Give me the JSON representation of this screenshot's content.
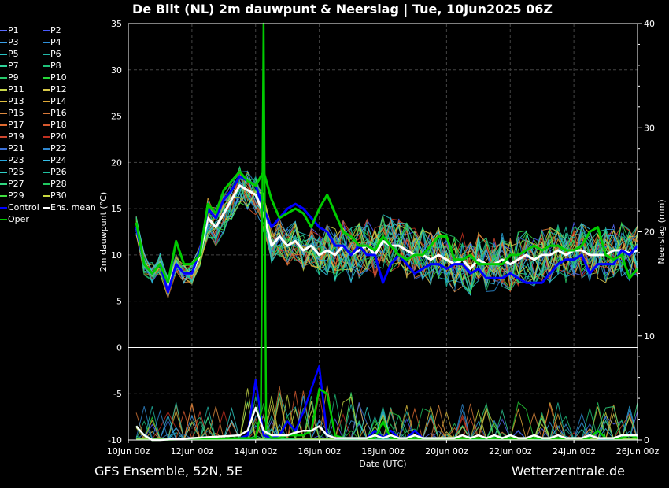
{
  "header": {
    "title": "De Bilt  (NL)  2m dauwpunt & Neerslag | Tue, 10Jun2025 06Z"
  },
  "footer": {
    "left": "GFS Ensemble, 52N, 5E",
    "right": "Wetterzentrale.de"
  },
  "legend": [
    {
      "label": "P1",
      "color": "#5b6cff"
    },
    {
      "label": "P2",
      "color": "#4a5cff"
    },
    {
      "label": "P3",
      "color": "#3aa0e8"
    },
    {
      "label": "P4",
      "color": "#2f8fd8"
    },
    {
      "label": "P5",
      "color": "#27c4c4"
    },
    {
      "label": "P6",
      "color": "#22b8a8"
    },
    {
      "label": "P7",
      "color": "#2fd49a"
    },
    {
      "label": "P8",
      "color": "#1fc27a"
    },
    {
      "label": "P9",
      "color": "#26c96a"
    },
    {
      "label": "P10",
      "color": "#27d83a"
    },
    {
      "label": "P11",
      "color": "#c8d84a"
    },
    {
      "label": "P12",
      "color": "#d8c84a"
    },
    {
      "label": "P13",
      "color": "#e0c040"
    },
    {
      "label": "P14",
      "color": "#e0a838"
    },
    {
      "label": "P15",
      "color": "#e08c40"
    },
    {
      "label": "P16",
      "color": "#d87838"
    },
    {
      "label": "P17",
      "color": "#e06a30"
    },
    {
      "label": "P18",
      "color": "#d85a30"
    },
    {
      "label": "P19",
      "color": "#d04830"
    },
    {
      "label": "P20",
      "color": "#c03020"
    },
    {
      "label": "P21",
      "color": "#3a70d8"
    },
    {
      "label": "P22",
      "color": "#3088d0"
    },
    {
      "label": "P23",
      "color": "#28a8e0"
    },
    {
      "label": "P24",
      "color": "#38c0e8"
    },
    {
      "label": "P25",
      "color": "#30d0c8"
    },
    {
      "label": "P26",
      "color": "#20c0a0"
    },
    {
      "label": "P27",
      "color": "#30d880"
    },
    {
      "label": "P28",
      "color": "#20c860"
    },
    {
      "label": "P29",
      "color": "#40e040"
    },
    {
      "label": "P30",
      "color": "#c8d840"
    },
    {
      "label": "Control",
      "color": "#0000ff"
    },
    {
      "label": "Ens. mean",
      "color": "#ffffff"
    },
    {
      "label": "Oper",
      "color": "#00cc00"
    }
  ],
  "chart_data": {
    "type": "line",
    "xlabel": "Date (UTC)",
    "ylabel": "2m dauwpunt (°C)",
    "ylabel_right": "Neerslag (mm)",
    "x_ticks": [
      "10Jun 00z",
      "12Jun 00z",
      "14Jun 00z",
      "16Jun 00z",
      "18Jun 00z",
      "20Jun 00z",
      "22Jun 00z",
      "24Jun 00z",
      "26Jun 00z"
    ],
    "xlim_hours": [
      0,
      384
    ],
    "ylim": [
      -10,
      35
    ],
    "y_ticks": [
      -10,
      -5,
      0,
      5,
      10,
      15,
      20,
      25,
      30,
      35
    ],
    "ylim_right": [
      0,
      40
    ],
    "y_ticks_right": [
      0,
      10,
      20,
      30,
      40
    ],
    "grid": true,
    "series": [
      {
        "name": "Ens. mean",
        "color": "#ffffff",
        "x": [
          6,
          12,
          18,
          24,
          30,
          36,
          42,
          48,
          54,
          60,
          66,
          72,
          78,
          84,
          90,
          96,
          102,
          108,
          114,
          120,
          126,
          132,
          138,
          144,
          150,
          156,
          162,
          168,
          174,
          180,
          186,
          192,
          198,
          204,
          210,
          216,
          222,
          228,
          234,
          240,
          246,
          252,
          258,
          264,
          270,
          276,
          282,
          288,
          294,
          300,
          306,
          312,
          318,
          324,
          330,
          336,
          342,
          348,
          354,
          360,
          366,
          372,
          378,
          384
        ],
        "y": [
          13,
          9,
          8,
          9,
          6.5,
          9,
          8,
          8,
          10,
          14,
          13,
          14.5,
          16,
          17.5,
          17,
          16.5,
          14.5,
          11,
          12,
          11,
          11.5,
          10.5,
          11,
          10,
          10.5,
          10,
          11,
          10,
          10.5,
          11,
          10,
          11.5,
          11,
          11,
          10.5,
          10,
          10,
          9.5,
          10,
          9.5,
          9,
          9.5,
          8.5,
          9.5,
          9,
          9,
          9.5,
          9,
          9.5,
          10,
          9.5,
          10,
          10,
          10.5,
          10,
          10.5,
          10.5,
          10,
          10,
          10,
          10.5,
          10.5,
          10.2,
          10.5
        ]
      },
      {
        "name": "Control",
        "color": "#0000ff",
        "x": [
          6,
          12,
          18,
          24,
          30,
          36,
          42,
          48,
          54,
          60,
          66,
          72,
          78,
          84,
          90,
          96,
          102,
          108,
          114,
          120,
          126,
          132,
          138,
          144,
          150,
          156,
          162,
          168,
          174,
          180,
          186,
          192,
          198,
          204,
          210,
          216,
          222,
          228,
          234,
          240,
          246,
          252,
          258,
          264,
          270,
          276,
          282,
          288,
          294,
          300,
          306,
          312,
          318,
          324,
          330,
          336,
          342,
          348,
          354,
          360,
          366,
          372,
          378,
          384
        ],
        "y": [
          13,
          9,
          8,
          9,
          6,
          9,
          8,
          8,
          10.5,
          15,
          14,
          16,
          17,
          18.5,
          18,
          17.5,
          15,
          13,
          14,
          15,
          15.5,
          15,
          14,
          13,
          12.5,
          11,
          11,
          10,
          11,
          10,
          10,
          7,
          9,
          10,
          9,
          8,
          8.5,
          9,
          9,
          8.5,
          9,
          9,
          8,
          8.5,
          7.5,
          7.5,
          7.5,
          8,
          7.5,
          7,
          7,
          7,
          8,
          9,
          9.5,
          9.5,
          10,
          8,
          9,
          9,
          9,
          10.5,
          10,
          11
        ]
      },
      {
        "name": "Oper",
        "color": "#00cc00",
        "x": [
          6,
          12,
          18,
          24,
          30,
          36,
          42,
          48,
          54,
          60,
          66,
          72,
          78,
          84,
          90,
          96,
          102,
          108,
          114,
          120,
          126,
          132,
          138,
          144,
          150,
          156,
          162,
          168,
          174,
          180,
          186,
          192,
          198,
          204,
          210,
          216,
          222,
          228,
          234,
          240,
          246,
          252,
          258,
          264,
          270,
          276,
          282,
          288,
          294,
          300,
          306,
          312,
          318,
          324,
          330,
          336,
          342,
          348,
          354,
          360,
          366,
          372,
          378,
          384
        ],
        "y": [
          13.5,
          9,
          8,
          9,
          7,
          11.5,
          9,
          9,
          10,
          15.5,
          14.5,
          17,
          18,
          19,
          18,
          17.5,
          19,
          16,
          14,
          14.5,
          15,
          14.5,
          13,
          15,
          16.5,
          14.5,
          12.5,
          12,
          11,
          11,
          10.5,
          12,
          11,
          10,
          9.5,
          10,
          10,
          11,
          12,
          12,
          9.5,
          9.5,
          10,
          9,
          9,
          9,
          9,
          10,
          10,
          10.5,
          11,
          10.5,
          11,
          11,
          10.5,
          10.5,
          11,
          12.5,
          13,
          10,
          9.5,
          10,
          7.5,
          8.5
        ]
      },
      {
        "name": "Control precip",
        "color": "#0000ff",
        "x": [
          84,
          90,
          96,
          102,
          108,
          114,
          120,
          126,
          132,
          138,
          144,
          150,
          156,
          162,
          168,
          174,
          180,
          186,
          192,
          198,
          204,
          210,
          216,
          222,
          228
        ],
        "y": [
          -9.8,
          -9.5,
          -3.5,
          -9.5,
          -9.8,
          -9.5,
          -8,
          -9,
          -7,
          -4.5,
          -2,
          -9.5,
          -9.8,
          -9.8,
          -9.8,
          -9.8,
          -9.8,
          -9,
          -9.8,
          -9,
          -9.8,
          -9.8,
          -9,
          -9.8,
          -9.8
        ]
      },
      {
        "name": "Oper precip",
        "color": "#00cc00",
        "x": [
          6,
          12,
          18,
          84,
          90,
          96,
          100,
          102,
          104,
          108,
          114,
          120,
          126,
          132,
          138,
          144,
          150,
          156,
          162,
          168,
          174,
          180,
          186,
          192,
          198,
          204,
          210,
          216,
          222,
          228,
          234,
          240,
          246,
          252,
          258,
          264,
          270,
          276,
          282,
          288,
          294,
          300,
          306,
          312,
          318,
          324,
          330,
          336,
          342,
          348,
          354,
          360,
          366,
          372,
          378,
          384
        ],
        "y": [
          -8.5,
          -9.5,
          -10,
          -9.8,
          -9.8,
          -9.8,
          -7,
          35,
          -9,
          -9.8,
          -9.8,
          -9.5,
          -9.5,
          -9.5,
          -9,
          -4.5,
          -5,
          -9.5,
          -9.8,
          -9.8,
          -9.8,
          -9.8,
          -9.8,
          -8,
          -9.8,
          -9.8,
          -9.8,
          -9.8,
          -9.8,
          -9.8,
          -9.8,
          -9.8,
          -9.8,
          -9.8,
          -9.8,
          -9.8,
          -9.8,
          -9.8,
          -9.8,
          -9.8,
          -9.8,
          -9.8,
          -9.8,
          -9.8,
          -9.8,
          -9.8,
          -9.8,
          -9.8,
          -9.8,
          -9.8,
          -9,
          -9.8,
          -9.8,
          -9.8,
          -9.5,
          -9.8
        ]
      },
      {
        "name": "Ens. mean precip",
        "color": "#ffffff",
        "x": [
          6,
          12,
          18,
          24,
          84,
          90,
          96,
          102,
          108,
          114,
          120,
          126,
          132,
          138,
          144,
          150,
          156,
          162,
          168,
          174,
          180,
          186,
          192,
          198,
          204,
          210,
          216,
          222,
          228,
          234,
          240,
          246,
          252,
          258,
          264,
          270,
          276,
          282,
          288,
          294,
          300,
          306,
          312,
          318,
          324,
          330,
          336,
          342,
          348,
          354,
          360,
          366,
          372,
          378,
          384
        ],
        "y": [
          -8.5,
          -9.5,
          -10,
          -10,
          -9.5,
          -9,
          -6.5,
          -9,
          -9.5,
          -9.5,
          -9.5,
          -9.2,
          -9,
          -9,
          -8.5,
          -9.5,
          -9.8,
          -9.8,
          -9.8,
          -9.8,
          -9.8,
          -9.5,
          -9.8,
          -9.5,
          -9.8,
          -9.8,
          -9.5,
          -9.8,
          -9.8,
          -9.8,
          -9.8,
          -9.8,
          -9.5,
          -9.8,
          -9.5,
          -9.8,
          -9.5,
          -9.8,
          -9.5,
          -9.8,
          -9.8,
          -9.5,
          -9.8,
          -9.8,
          -9.5,
          -9.8,
          -9.8,
          -9.8,
          -9.5,
          -9.8,
          -9.8,
          -9.8,
          -9.5,
          -9.5,
          -9.5
        ]
      }
    ]
  }
}
